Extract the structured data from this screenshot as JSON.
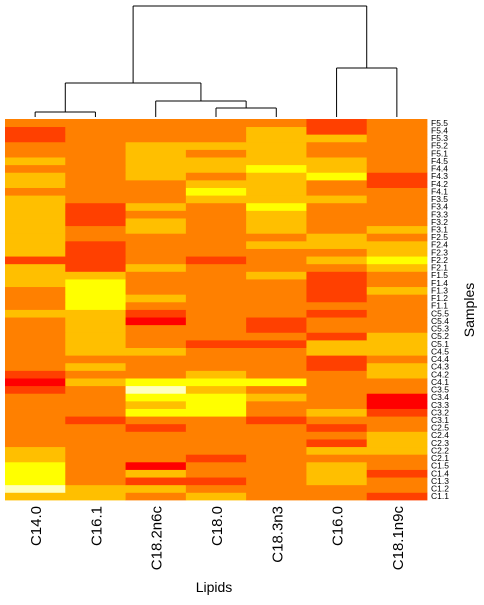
{
  "chart_data": {
    "type": "heatmap",
    "title": "",
    "xlabel": "Lipids",
    "ylabel": "Samples",
    "columns": [
      "C14.0",
      "C16.1",
      "C18.2n6c",
      "C18.0",
      "C18.3n3",
      "C16.0",
      "C18.1n9c"
    ],
    "rows": [
      "C1.1",
      "C1.2",
      "C1.3",
      "C1.4",
      "C1.5",
      "C2.1",
      "C2.2",
      "C2.3",
      "C2.4",
      "C2.5",
      "C3.1",
      "C3.2",
      "C3.3",
      "C3.4",
      "C3.5",
      "C4.1",
      "C4.2",
      "C4.3",
      "C4.4",
      "C4.5",
      "C5.1",
      "C5.2",
      "C5.3",
      "C5.4",
      "C5.5",
      "F1.1",
      "F1.2",
      "F1.3",
      "F1.4",
      "F1.5",
      "F2.1",
      "F2.2",
      "F2.3",
      "F2.4",
      "F2.5",
      "F3.1",
      "F3.2",
      "F3.3",
      "F3.4",
      "F3.5",
      "F4.1",
      "F4.2",
      "F4.3",
      "F4.4",
      "F4.5",
      "F5.1",
      "F5.2",
      "F5.3",
      "F5.4",
      "F5.5"
    ],
    "color_scale": [
      "#ff0000",
      "#ff4000",
      "#ff8000",
      "#ffbf00",
      "#ffff00",
      "#ffffbf"
    ],
    "values": [
      [
        3,
        3,
        2,
        3,
        2,
        2,
        1
      ],
      [
        5,
        3,
        3,
        2,
        2,
        2,
        2
      ],
      [
        4,
        2,
        1,
        1,
        2,
        3,
        2
      ],
      [
        4,
        2,
        3,
        2,
        2,
        3,
        1
      ],
      [
        4,
        2,
        0,
        2,
        2,
        3,
        2
      ],
      [
        3,
        2,
        2,
        1,
        2,
        2,
        2
      ],
      [
        3,
        2,
        2,
        2,
        2,
        3,
        3
      ],
      [
        2,
        2,
        2,
        2,
        2,
        1,
        3
      ],
      [
        2,
        2,
        2,
        2,
        2,
        2,
        3
      ],
      [
        2,
        2,
        1,
        2,
        2,
        1,
        2
      ],
      [
        2,
        1,
        2,
        2,
        1,
        2,
        2
      ],
      [
        2,
        2,
        4,
        4,
        2,
        3,
        1
      ],
      [
        2,
        2,
        3,
        4,
        2,
        2,
        0
      ],
      [
        2,
        2,
        4,
        4,
        3,
        2,
        0
      ],
      [
        1,
        2,
        5,
        3,
        2,
        2,
        2
      ],
      [
        0,
        3,
        4,
        4,
        4,
        2,
        2
      ],
      [
        1,
        2,
        2,
        3,
        2,
        2,
        3
      ],
      [
        2,
        3,
        2,
        2,
        2,
        1,
        3
      ],
      [
        2,
        2,
        2,
        2,
        2,
        1,
        2
      ],
      [
        2,
        3,
        3,
        2,
        2,
        3,
        3
      ],
      [
        2,
        3,
        2,
        1,
        1,
        3,
        3
      ],
      [
        2,
        3,
        2,
        2,
        2,
        1,
        3
      ],
      [
        2,
        3,
        2,
        2,
        1,
        2,
        2
      ],
      [
        2,
        3,
        0,
        2,
        1,
        2,
        2
      ],
      [
        3,
        3,
        1,
        2,
        2,
        1,
        2
      ],
      [
        2,
        4,
        2,
        2,
        2,
        2,
        2
      ],
      [
        2,
        4,
        3,
        2,
        2,
        1,
        2
      ],
      [
        2,
        4,
        2,
        2,
        2,
        1,
        3
      ],
      [
        3,
        4,
        2,
        2,
        2,
        1,
        2
      ],
      [
        3,
        3,
        2,
        2,
        3,
        1,
        2
      ],
      [
        3,
        1,
        3,
        2,
        2,
        2,
        3
      ],
      [
        1,
        1,
        2,
        1,
        2,
        3,
        4
      ],
      [
        3,
        1,
        2,
        2,
        2,
        2,
        3
      ],
      [
        3,
        1,
        2,
        2,
        3,
        3,
        3
      ],
      [
        3,
        2,
        2,
        2,
        2,
        3,
        2
      ],
      [
        3,
        2,
        3,
        2,
        3,
        2,
        3
      ],
      [
        3,
        1,
        3,
        2,
        3,
        2,
        2
      ],
      [
        3,
        1,
        2,
        2,
        3,
        2,
        2
      ],
      [
        3,
        1,
        3,
        2,
        4,
        2,
        2
      ],
      [
        3,
        2,
        2,
        3,
        3,
        3,
        2
      ],
      [
        2,
        2,
        2,
        4,
        3,
        2,
        2
      ],
      [
        3,
        2,
        2,
        3,
        3,
        2,
        1
      ],
      [
        3,
        2,
        3,
        2,
        3,
        4,
        1
      ],
      [
        2,
        2,
        3,
        3,
        4,
        3,
        2
      ],
      [
        3,
        2,
        3,
        3,
        3,
        3,
        2
      ],
      [
        2,
        2,
        3,
        2,
        3,
        2,
        2
      ],
      [
        2,
        2,
        3,
        3,
        3,
        2,
        2
      ],
      [
        1,
        2,
        2,
        2,
        3,
        3,
        2
      ],
      [
        1,
        2,
        2,
        2,
        3,
        1,
        2
      ],
      [
        2,
        2,
        2,
        2,
        2,
        1,
        2
      ]
    ]
  }
}
